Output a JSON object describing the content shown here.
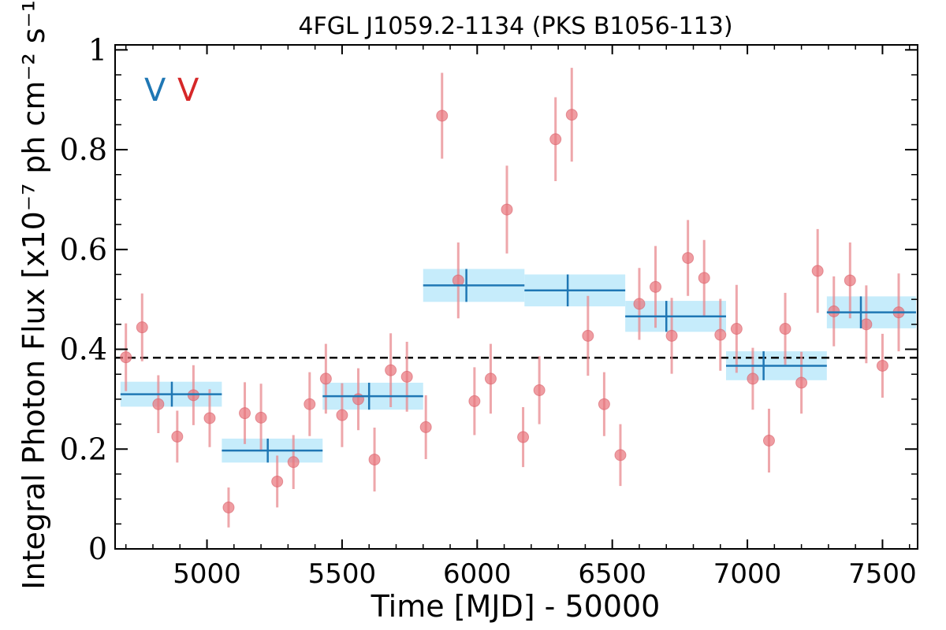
{
  "chart_data": {
    "type": "scatter",
    "title": "4FGL J1059.2-1134 (PKS B1056-113)",
    "xlabel": "Time [MJD] - 50000",
    "ylabel": "Integral Photon Flux [x10⁻⁷ ph cm⁻² s⁻¹]",
    "xlim": [
      4660,
      7630
    ],
    "ylim": [
      0,
      1.01
    ],
    "x_ticks": [
      5000,
      5500,
      6000,
      6500,
      7000,
      7500
    ],
    "x_tick_labels": [
      "5000",
      "5500",
      "6000",
      "6500",
      "7000",
      "7500"
    ],
    "y_ticks": [
      0,
      0.2,
      0.4,
      0.6,
      0.8,
      1.0
    ],
    "y_tick_labels": [
      "0",
      "0.2",
      "0.4",
      "0.6",
      "0.8",
      "1"
    ],
    "mean_flux": 0.383,
    "legend_markers": [
      {
        "text": "V",
        "color": "#1f77b4"
      },
      {
        "text": "V",
        "color": "#d62728"
      }
    ],
    "colors": {
      "points": "#e8737a",
      "point_errorbars": "#e88a8f",
      "bins": "#1f77b4",
      "bin_bands": "#c6ecfb",
      "mean_line": "#000000"
    },
    "series": [
      {
        "name": "",
        "x": [
          4700,
          4760,
          4820,
          4890,
          4950,
          5010,
          5080,
          5140,
          5200,
          5260,
          5320,
          5380,
          5440,
          5500,
          5560,
          5620,
          5680,
          5740,
          5810,
          5870,
          5930,
          5990,
          6050,
          6110,
          6170,
          6230,
          6290,
          6350,
          6410,
          6470,
          6530,
          6600,
          6660,
          6720,
          6780,
          6840,
          6900,
          6960,
          7020,
          7080,
          7140,
          7200,
          7260,
          7320,
          7380,
          7440,
          7500,
          7560
        ],
        "y": [
          0.384,
          0.444,
          0.29,
          0.225,
          0.308,
          0.262,
          0.083,
          0.272,
          0.263,
          0.135,
          0.174,
          0.29,
          0.341,
          0.268,
          0.3,
          0.179,
          0.358,
          0.345,
          0.244,
          0.868,
          0.538,
          0.296,
          0.341,
          0.68,
          0.224,
          0.318,
          0.821,
          0.87,
          0.427,
          0.29,
          0.188,
          0.491,
          0.525,
          0.427,
          0.583,
          0.543,
          0.429,
          0.441,
          0.341,
          0.217,
          0.441,
          0.333,
          0.557,
          0.476,
          0.538,
          0.45,
          0.367,
          0.474
        ],
        "yerr": [
          0.068,
          0.068,
          0.058,
          0.052,
          0.06,
          0.058,
          0.04,
          0.062,
          0.068,
          0.052,
          0.054,
          0.064,
          0.07,
          0.064,
          0.062,
          0.064,
          0.074,
          0.07,
          0.064,
          0.086,
          0.076,
          0.068,
          0.07,
          0.088,
          0.06,
          0.068,
          0.084,
          0.094,
          0.08,
          0.064,
          0.062,
          0.072,
          0.082,
          0.076,
          0.076,
          0.076,
          0.072,
          0.088,
          0.062,
          0.064,
          0.072,
          0.062,
          0.084,
          0.07,
          0.076,
          0.078,
          0.064,
          0.078
        ]
      }
    ],
    "bins": [
      {
        "x_start": 4680,
        "x_end": 5055,
        "x_center": 4870,
        "y": 0.31,
        "yerr": 0.025
      },
      {
        "x_start": 5055,
        "x_end": 5428,
        "x_center": 5225,
        "y": 0.197,
        "yerr": 0.024
      },
      {
        "x_start": 5428,
        "x_end": 5800,
        "x_center": 5600,
        "y": 0.306,
        "yerr": 0.027
      },
      {
        "x_start": 5800,
        "x_end": 6175,
        "x_center": 5960,
        "y": 0.528,
        "yerr": 0.033
      },
      {
        "x_start": 6175,
        "x_end": 6548,
        "x_center": 6335,
        "y": 0.518,
        "yerr": 0.032
      },
      {
        "x_start": 6548,
        "x_end": 6921,
        "x_center": 6700,
        "y": 0.466,
        "yerr": 0.031
      },
      {
        "x_start": 6921,
        "x_end": 7294,
        "x_center": 7060,
        "y": 0.367,
        "yerr": 0.029
      },
      {
        "x_start": 7294,
        "x_end": 7667,
        "x_center": 7420,
        "y": 0.474,
        "yerr": 0.032
      }
    ]
  }
}
